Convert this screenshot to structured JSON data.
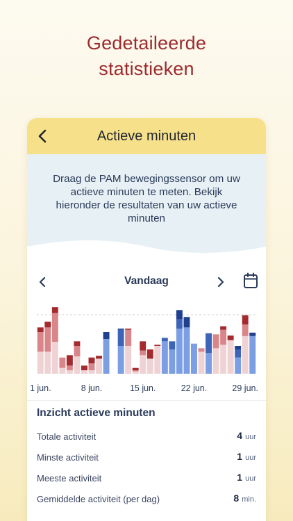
{
  "headline": {
    "line1": "Gedetaileerde",
    "line2": "statistieken"
  },
  "appbar": {
    "title": "Actieve minuten"
  },
  "intro": {
    "text": "Draag de PAM bewegingssensor om uw actieve minuten te meten. Bekijk hieronder de resultaten van uw actieve minuten"
  },
  "period": {
    "label": "Vandaag"
  },
  "colors": {
    "red_dark": "#a32a2e",
    "red_mid": "#d9868b",
    "red_light": "#efd3d4",
    "blue_dark": "#1f3f8f",
    "blue_mid": "#3e64b8",
    "blue_light": "#7c9ee3",
    "accent": "#9b2b2f",
    "appbar": "#f6e08a"
  },
  "chart_data": {
    "type": "bar",
    "stacked": true,
    "x_tick_labels": [
      "1 jun.",
      "8 jun.",
      "15 jun.",
      "22 jun.",
      "29 jun."
    ],
    "days": [
      1,
      2,
      3,
      4,
      5,
      6,
      7,
      8,
      9,
      10,
      11,
      12,
      13,
      14,
      15,
      16,
      17,
      18,
      19,
      20,
      21,
      22,
      23,
      24,
      25,
      26,
      27,
      28,
      29,
      30
    ],
    "series": [
      {
        "tone": "light",
        "values": [
          38,
          38,
          55,
          10,
          6,
          30,
          6,
          6,
          26,
          60,
          0,
          48,
          48,
          4,
          32,
          26,
          48,
          56,
          42,
          78,
          80,
          52,
          38,
          36,
          44,
          50,
          58,
          28,
          65,
          65
        ]
      },
      {
        "tone": "mid",
        "values": [
          34,
          42,
          50,
          18,
          8,
          18,
          0,
          12,
          0,
          0,
          0,
          28,
          28,
          2,
          8,
          0,
          0,
          6,
          14,
          16,
          0,
          0,
          6,
          34,
          24,
          26,
          0,
          14,
          20,
          0
        ]
      },
      {
        "tone": "dark",
        "values": [
          8,
          10,
          10,
          0,
          18,
          8,
          8,
          10,
          5,
          12,
          0,
          2,
          2,
          4,
          16,
          16,
          2,
          0,
          0,
          16,
          18,
          0,
          0,
          0,
          0,
          6,
          8,
          6,
          16,
          6
        ]
      }
    ],
    "blue_days": [
      10,
      11,
      12,
      18,
      19,
      20,
      21,
      22,
      24,
      28,
      30
    ],
    "reference_line": 102,
    "ylim": [
      0,
      120
    ],
    "legend": "none",
    "grid": false
  },
  "stats": {
    "title": "Inzicht actieve minuten",
    "rows": [
      {
        "label": "Totale activiteit",
        "value": "4",
        "unit": "uur"
      },
      {
        "label": "Minste activiteit",
        "value": "1",
        "unit": "uur"
      },
      {
        "label": "Meeste activiteit",
        "value": "1",
        "unit": "uur"
      },
      {
        "label": "Gemiddelde activiteit (per dag)",
        "value": "8",
        "unit": "min."
      }
    ]
  }
}
